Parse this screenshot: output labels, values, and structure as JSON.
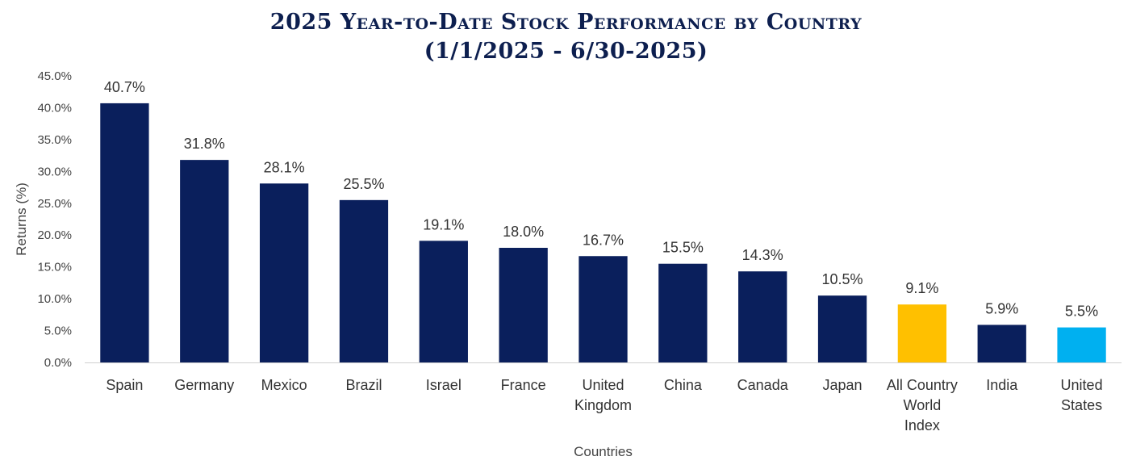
{
  "chart_data": {
    "type": "bar",
    "title": "2025 Year-to-Date Stock Performance by Country",
    "subtitle": "(1/1/2025 - 6/30-2025)",
    "xlabel": "Countries",
    "ylabel": "Returns (%)",
    "ylim": [
      0,
      45
    ],
    "ytick_labels": [
      "0.0%",
      "5.0%",
      "10.0%",
      "15.0%",
      "20.0%",
      "25.0%",
      "30.0%",
      "35.0%",
      "40.0%",
      "45.0%"
    ],
    "grid": false,
    "categories": [
      [
        "Spain"
      ],
      [
        "Germany"
      ],
      [
        "Mexico"
      ],
      [
        "Brazil"
      ],
      [
        "Israel"
      ],
      [
        "France"
      ],
      [
        "United",
        "Kingdom"
      ],
      [
        "China"
      ],
      [
        "Canada"
      ],
      [
        "Japan"
      ],
      [
        "All Country",
        "World",
        "Index"
      ],
      [
        "India"
      ],
      [
        "United",
        "States"
      ]
    ],
    "values": [
      40.7,
      31.8,
      28.1,
      25.5,
      19.1,
      18.0,
      16.7,
      15.5,
      14.3,
      10.5,
      9.1,
      5.9,
      5.5
    ],
    "data_labels": [
      "40.7%",
      "31.8%",
      "28.1%",
      "25.5%",
      "19.1%",
      "18.0%",
      "16.7%",
      "15.5%",
      "14.3%",
      "10.5%",
      "9.1%",
      "5.9%",
      "5.5%"
    ],
    "colors": [
      "#0a1f5c",
      "#0a1f5c",
      "#0a1f5c",
      "#0a1f5c",
      "#0a1f5c",
      "#0a1f5c",
      "#0a1f5c",
      "#0a1f5c",
      "#0a1f5c",
      "#0a1f5c",
      "#ffc000",
      "#0a1f5c",
      "#00b0f0"
    ]
  }
}
